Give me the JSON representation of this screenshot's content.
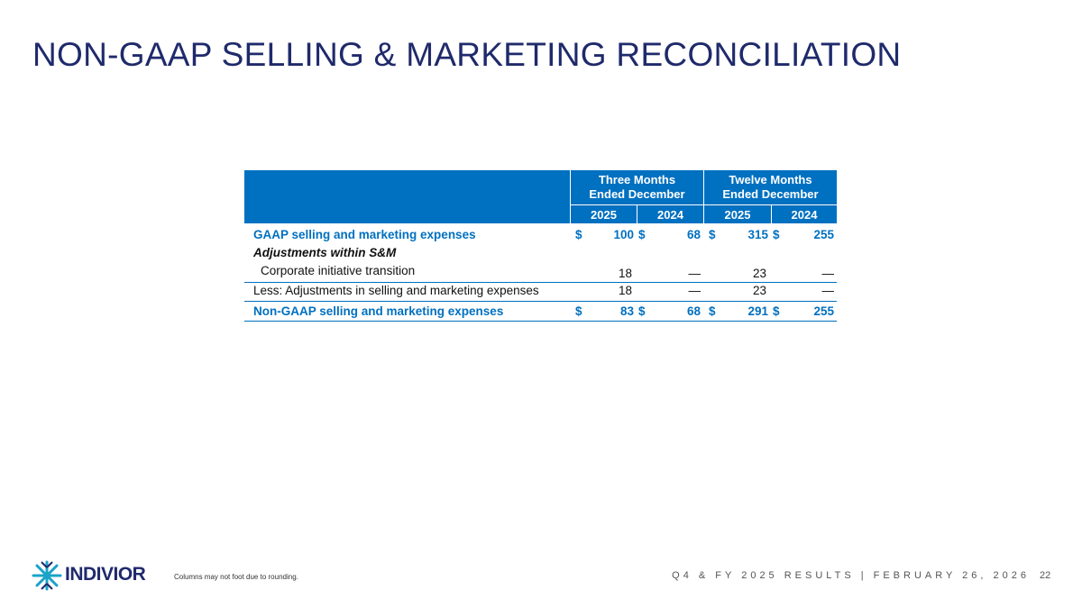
{
  "header": {
    "title": "NON-GAAP SELLING & MARKETING RECONCILIATION"
  },
  "table": {
    "groups": [
      "Three Months Ended December 31,",
      "Twelve Months Ended December 31,"
    ],
    "years": [
      2025,
      2024,
      2025,
      2024
    ],
    "rows": [
      {
        "label": "GAAP selling and marketing expenses",
        "style": "total",
        "cells": [
          {
            "currency": "$",
            "value": 100
          },
          {
            "currency": "$",
            "value": 68
          },
          {
            "currency": "$",
            "value": 315
          },
          {
            "currency": "$",
            "value": 255
          }
        ]
      },
      {
        "label": "Adjustments within S&M",
        "style": "section",
        "cells": []
      },
      {
        "label": "Corporate initiative transition",
        "style": "indent",
        "cells": [
          {
            "value": 18
          },
          {
            "value": "—"
          },
          {
            "value": 23
          },
          {
            "value": "—"
          }
        ]
      },
      {
        "label": "Less: Adjustments in selling and marketing expenses",
        "style": "plain",
        "cells": [
          {
            "value": 18
          },
          {
            "value": "—"
          },
          {
            "value": 23
          },
          {
            "value": "—"
          }
        ]
      },
      {
        "label": "Non-GAAP selling and marketing expenses",
        "style": "total",
        "cells": [
          {
            "currency": "$",
            "value": 83
          },
          {
            "currency": "$",
            "value": 68
          },
          {
            "currency": "$",
            "value": 291
          },
          {
            "currency": "$",
            "value": 255
          }
        ]
      }
    ]
  },
  "footer": {
    "logo": "INDIVIOR",
    "note": "Columns may not foot due to rounding.",
    "event": "Q4 & FY 2025 RESULTS | FEBRUARY 26, 2026",
    "page": 22
  }
}
